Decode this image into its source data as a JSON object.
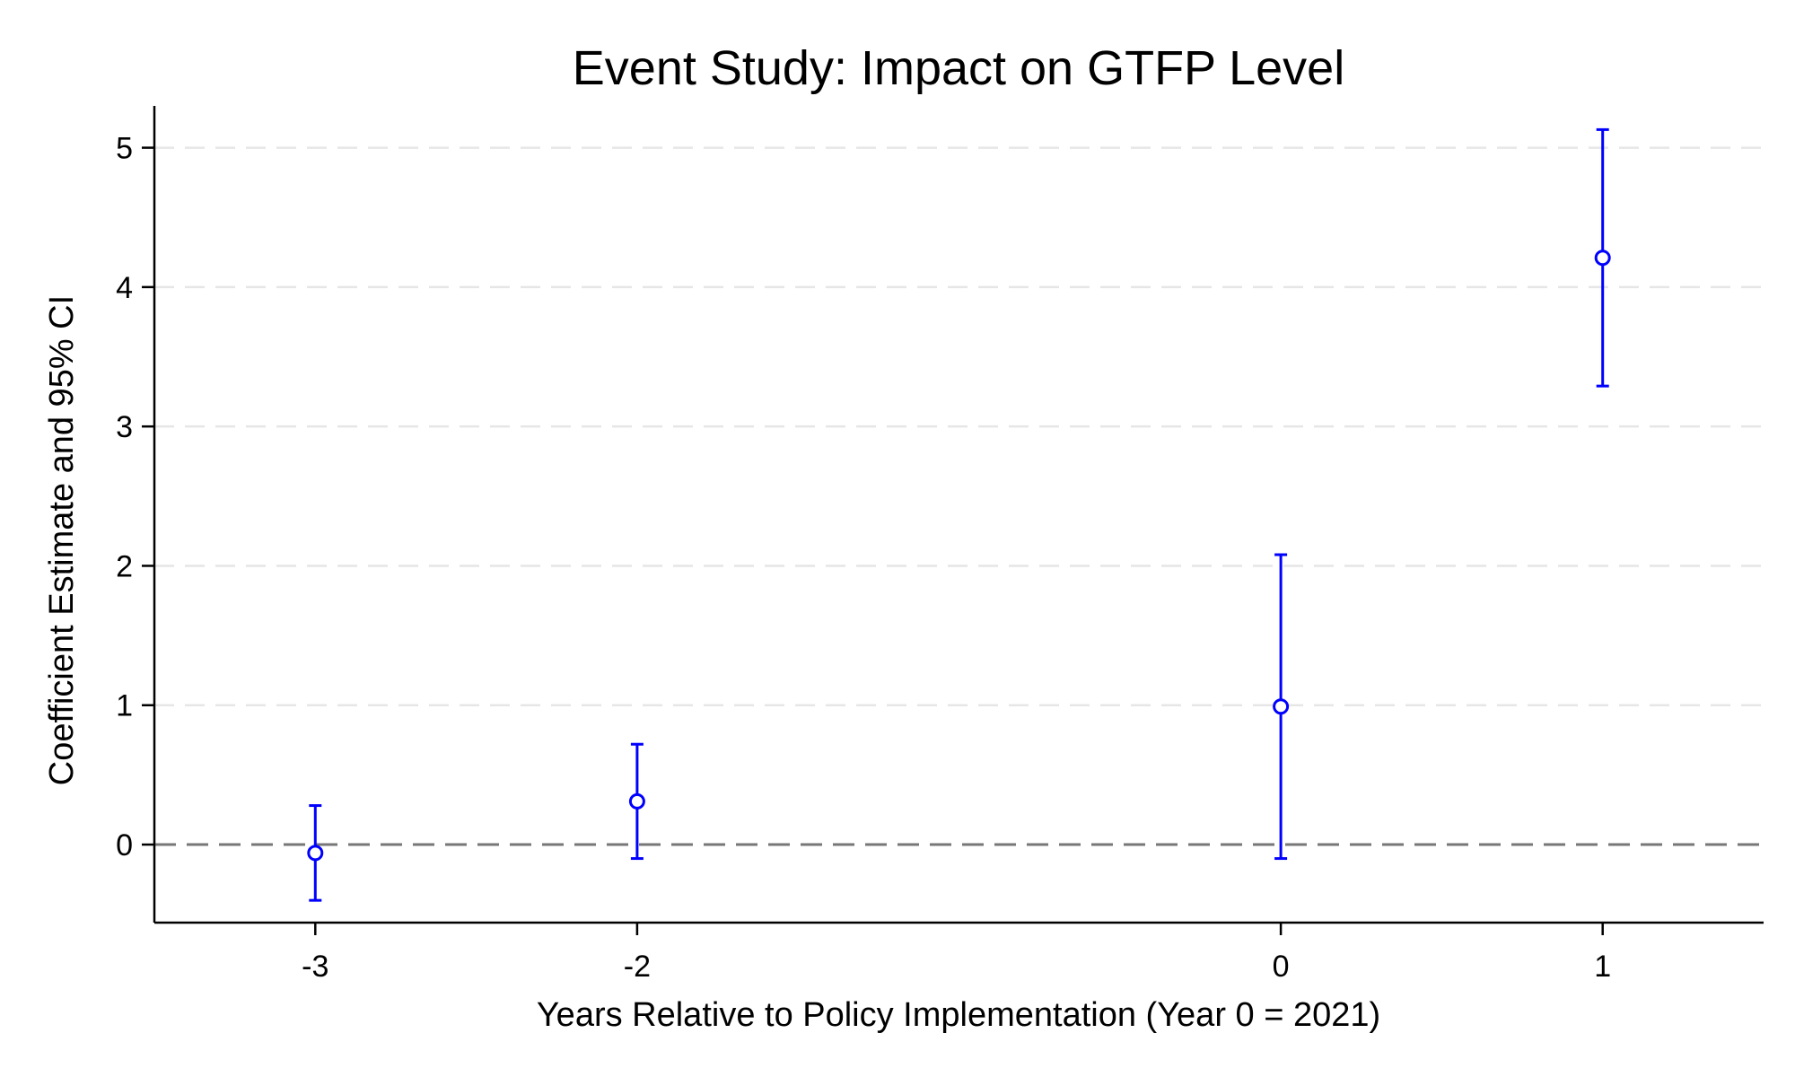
{
  "chart_data": {
    "type": "scatter",
    "title": "Event Study: Impact on GTFP Level",
    "xlabel": "Years Relative to Policy Implementation (Year 0 = 2021)",
    "ylabel": "Coefficient Estimate and 95% CI",
    "x_ticks": [
      -3,
      -2,
      0,
      1
    ],
    "x_tick_labels": [
      "-3",
      "-2",
      "0",
      "1"
    ],
    "y_ticks": [
      0,
      1,
      2,
      3,
      4,
      5
    ],
    "y_tick_labels": [
      "0",
      "1",
      "2",
      "3",
      "4",
      "5"
    ],
    "xlim": [
      -3.5,
      1.5
    ],
    "ylim": [
      -0.56,
      5.3
    ],
    "grid": "horizontal dashed",
    "reference_line": {
      "y": 0,
      "style": "dashed",
      "color": "#777777"
    },
    "series": [
      {
        "x": [
          -3,
          -2,
          0,
          1
        ],
        "y": [
          -0.06,
          0.31,
          0.99,
          4.21
        ],
        "ci_lower": [
          -0.4,
          -0.1,
          -0.1,
          3.29
        ],
        "ci_upper": [
          0.28,
          0.72,
          2.08,
          5.13
        ],
        "color": "#0000ff"
      }
    ]
  }
}
